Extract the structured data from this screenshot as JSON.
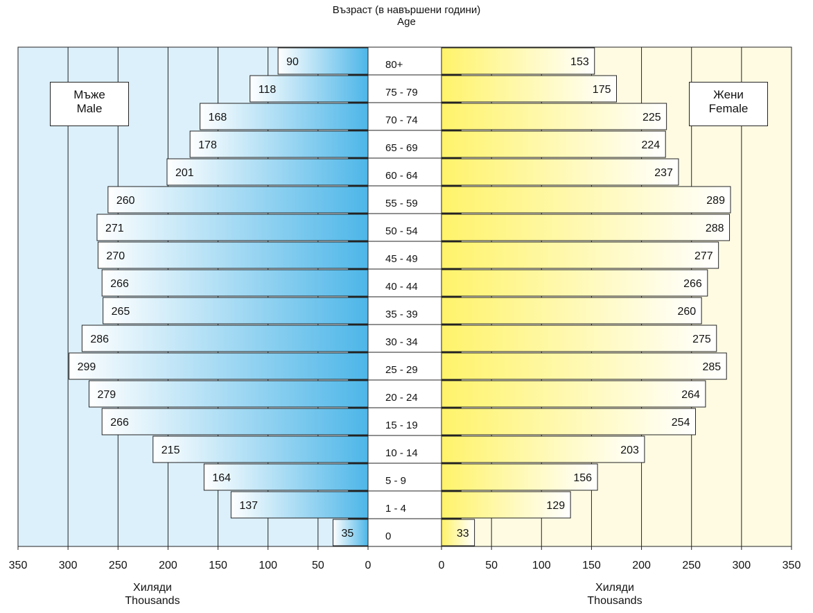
{
  "chart_data": {
    "type": "bar",
    "orientation": "horizontal",
    "title": "Възраст (в навършени години)",
    "subtitle": "Age",
    "categories": [
      "80+",
      "75 - 79",
      "70 - 74",
      "65 - 69",
      "60 - 64",
      "55 - 59",
      "50 - 54",
      "45 - 49",
      "40 - 44",
      "35 - 39",
      "30 - 34",
      "25 - 29",
      "20 - 24",
      "15 - 19",
      "10 - 14",
      "5 -  9",
      "1 -  4",
      "0"
    ],
    "series": [
      {
        "name": "Мъже",
        "name_en": "Male",
        "values": [
          90,
          118,
          168,
          178,
          201,
          260,
          271,
          270,
          266,
          265,
          286,
          299,
          279,
          266,
          215,
          164,
          137,
          35
        ]
      },
      {
        "name": "Жени",
        "name_en": "Female",
        "values": [
          153,
          175,
          225,
          224,
          237,
          289,
          288,
          277,
          266,
          260,
          275,
          285,
          264,
          254,
          203,
          156,
          129,
          33
        ]
      }
    ],
    "xlabel": "Хиляди",
    "xlabel_en": "Thousands",
    "xlim": [
      0,
      350
    ],
    "xticks": [
      0,
      50,
      100,
      150,
      200,
      250,
      300,
      350
    ],
    "male_tick_labels": [
      "350",
      "300",
      "250",
      "200",
      "150",
      "100",
      "50",
      "0"
    ],
    "female_tick_labels": [
      "0",
      "50",
      "100",
      "150",
      "200",
      "250",
      "300",
      "350"
    ],
    "grid": true,
    "legend_male_position": "top-left",
    "legend_female_position": "top-right",
    "colors": {
      "male_panel": "#dcf0fb",
      "male_bar_light": "#ffffff",
      "male_bar_dark": "#4db6e8",
      "female_panel": "#fffbe3",
      "female_bar_dark": "#fff36a",
      "female_bar_light": "#ffffff",
      "outline": "#222222"
    }
  }
}
